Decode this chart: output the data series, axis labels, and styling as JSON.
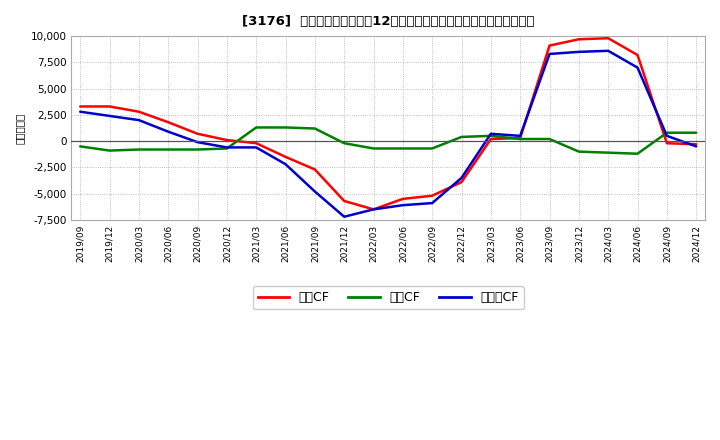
{
  "title": "[3176]  キャッシュフローの12か月移動合計の対前年同期増減額の推移",
  "ylabel": "（百万円）",
  "background_color": "#ffffff",
  "plot_bg_color": "#ffffff",
  "ylim": [
    -7500,
    10000
  ],
  "yticks": [
    -7500,
    -5000,
    -2500,
    0,
    2500,
    5000,
    7500,
    10000
  ],
  "x_labels": [
    "2019/09",
    "2019/12",
    "2020/03",
    "2020/06",
    "2020/09",
    "2020/12",
    "2021/03",
    "2021/06",
    "2021/09",
    "2021/12",
    "2022/03",
    "2022/06",
    "2022/09",
    "2022/12",
    "2023/03",
    "2023/06",
    "2023/09",
    "2023/12",
    "2024/03",
    "2024/06",
    "2024/09",
    "2024/12"
  ],
  "operating_cf": [
    3300,
    3300,
    2800,
    1800,
    700,
    100,
    -200,
    -1500,
    -2700,
    -5700,
    -6500,
    -5500,
    -5200,
    -3900,
    200,
    300,
    9100,
    9700,
    9800,
    8200,
    -200,
    -300
  ],
  "investing_cf": [
    -500,
    -900,
    -800,
    -800,
    -800,
    -700,
    1300,
    1300,
    1200,
    -200,
    -700,
    -700,
    -700,
    400,
    500,
    200,
    200,
    -1000,
    -1100,
    -1200,
    800,
    800
  ],
  "free_cf": [
    2800,
    2400,
    2000,
    900,
    -100,
    -600,
    -600,
    -2200,
    -4800,
    -7200,
    -6500,
    -6100,
    -5900,
    -3500,
    700,
    500,
    8300,
    8500,
    8600,
    7000,
    500,
    -500
  ],
  "legend_labels": [
    "営業CF",
    "投資CF",
    "フリーCF"
  ],
  "line_colors": [
    "#ff0000",
    "#008000",
    "#0000cd"
  ],
  "line_width": 1.8
}
